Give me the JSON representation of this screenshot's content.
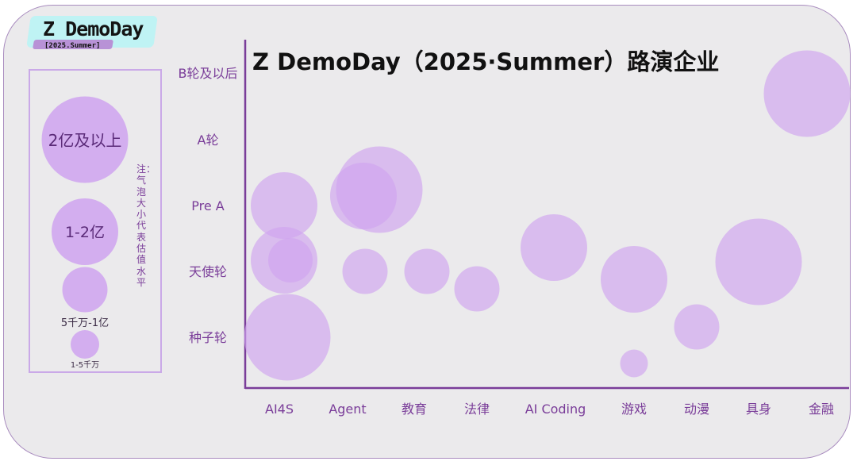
{
  "logo": {
    "title": "Z DemoDay",
    "subtitle": "[2025.Summer]"
  },
  "legend": {
    "note": "注：气泡大小代表估值水平",
    "sizes": [
      {
        "label": "2亿及以上",
        "tier": 4
      },
      {
        "label": "1-2亿",
        "tier": 3
      },
      {
        "label": "5千万-1亿",
        "tier": 2
      },
      {
        "label": "1-5千万",
        "tier": 1
      }
    ]
  },
  "colors": {
    "background": "#ebeaec",
    "frame": "#a98cbf",
    "bubble_fill": "#cfa3f0",
    "bubble_opacity": "0.65",
    "label_text": "#7a3d99",
    "axis": "#7a3d99",
    "title": "#111111"
  },
  "chart_data": {
    "type": "scatter",
    "title": "Z DemoDay（2025·Summer）路演企业",
    "xlabel": "",
    "ylabel": "",
    "categories": [
      "AI4S",
      "Agent",
      "教育",
      "法律",
      "AI Coding",
      "游戏",
      "动漫",
      "具身",
      "金融"
    ],
    "y_categories": [
      "种子轮",
      "天使轮",
      "Pre A",
      "A轮",
      "B轮及以后"
    ],
    "size_tiers": [
      "1-5千万",
      "5千万-1亿",
      "1-2亿",
      "2亿及以上"
    ],
    "grid": false,
    "points": [
      {
        "x": "AI4S",
        "y": "种子轮",
        "size": 4
      },
      {
        "x": "AI4S",
        "y": "天使轮",
        "size": 3
      },
      {
        "x": "AI4S",
        "y": "天使轮",
        "size": 1.5
      },
      {
        "x": "AI4S",
        "y": "Pre A",
        "size": 3
      },
      {
        "x": "Agent",
        "y": "Pre A",
        "size": 4
      },
      {
        "x": "Agent",
        "y": "Pre A",
        "size": 3
      },
      {
        "x": "Agent",
        "y": "天使轮",
        "size": 2
      },
      {
        "x": "教育",
        "y": "天使轮",
        "size": 2
      },
      {
        "x": "法律",
        "y": "天使轮",
        "size": 2
      },
      {
        "x": "AI Coding",
        "y": "天使轮",
        "size": 3
      },
      {
        "x": "游戏",
        "y": "天使轮",
        "size": 3
      },
      {
        "x": "游戏",
        "y": "种子轮",
        "size": 1
      },
      {
        "x": "动漫",
        "y": "种子轮",
        "size": 2
      },
      {
        "x": "具身",
        "y": "天使轮",
        "size": 4
      },
      {
        "x": "金融",
        "y": "B轮及以后",
        "size": 4
      }
    ]
  }
}
